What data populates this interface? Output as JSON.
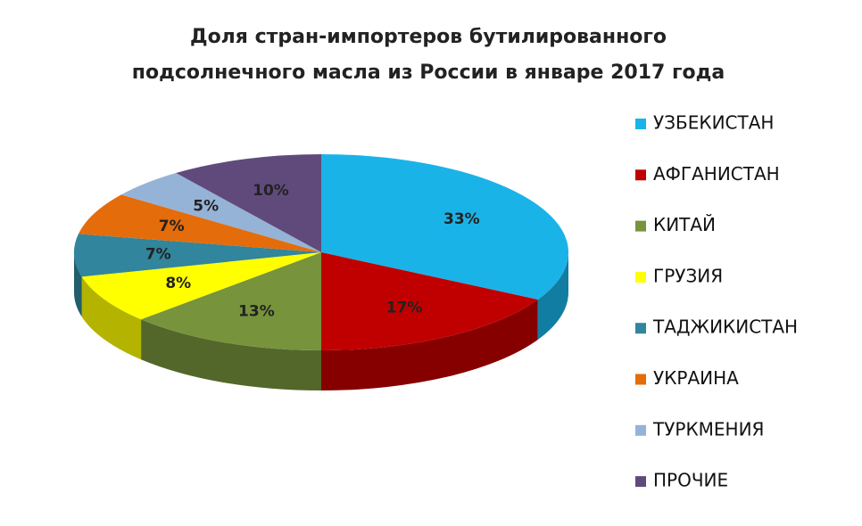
{
  "chart_data": {
    "type": "pie3d",
    "title": [
      "Доля стран-импортеров бутилированного",
      "подсолнечного масла из России в январе 2017 года"
    ],
    "categories": [
      "УЗБЕКИСТАН",
      "АФГАНИСТАН",
      "КИТАЙ",
      "ГРУЗИЯ",
      "ТАДЖИКИСТАН",
      "УКРАИНА",
      "ТУРКМЕНИЯ",
      "ПРОЧИЕ"
    ],
    "values": [
      33,
      17,
      13,
      8,
      7,
      7,
      5,
      10
    ],
    "value_labels": [
      "33%",
      "17%",
      "13%",
      "8%",
      "7%",
      "7%",
      "5%",
      "10%"
    ],
    "colors": [
      "#1ab3e8",
      "#c00000",
      "#77933c",
      "#ffff00",
      "#31859c",
      "#e46c0a",
      "#95b3d7",
      "#604a7b"
    ],
    "legend": "right"
  }
}
